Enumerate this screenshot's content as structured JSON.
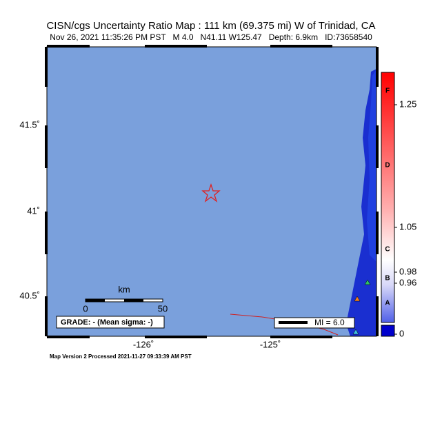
{
  "header": {
    "title": "CISN/cgs Uncertainty Ratio Map : 111 km (69.375 mi) W of Trinidad, CA",
    "subtitle": "Nov 26, 2021 11:35:26 PM PST   M 4.0   N41.11 W125.47   Depth: 6.9km   ID:73658540"
  },
  "map": {
    "lat_labels": [
      "41.5˚",
      "41˚",
      "40.5˚"
    ],
    "lon_labels": [
      "-126˚",
      "-125˚"
    ],
    "scale": {
      "unit": "km",
      "labels": [
        "0",
        "50"
      ]
    },
    "grade": "GRADE: - (Mean sigma: -)",
    "mi_legend": "MI = 6.0"
  },
  "colorbar": {
    "letters": [
      "F",
      "D",
      "C",
      "B",
      "A"
    ],
    "ticks": [
      "1.25",
      "1.05",
      "0.98",
      "0.96",
      "0"
    ]
  },
  "footer": "Map Version 2 Processed 2021-11-27 09:33:39 AM PST"
}
